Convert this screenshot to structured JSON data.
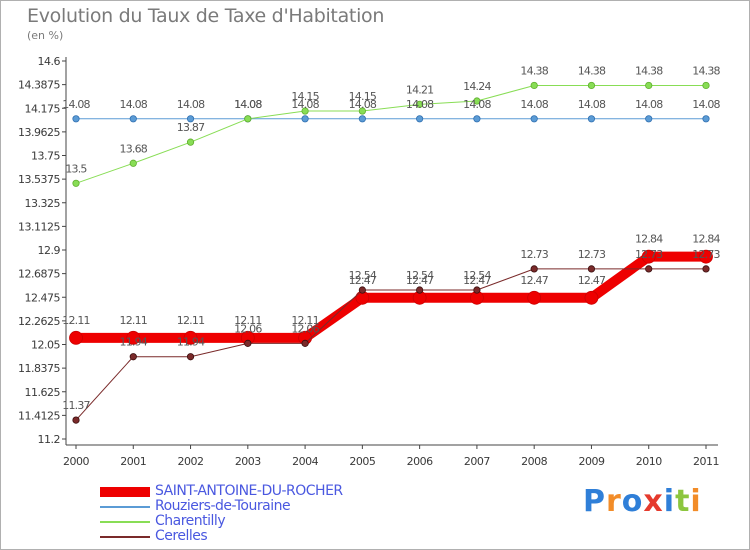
{
  "header": {
    "title": "Evolution du Taux de Taxe d'Habitation",
    "unit": "(en %)"
  },
  "logo": {
    "text": "Proxiti",
    "colors": [
      "#2f7fd8",
      "#f28c28",
      "#2f7fd8",
      "#e53a2d",
      "#2f7fd8",
      "#8cc63e",
      "#f28c28"
    ]
  },
  "chart_data": {
    "type": "line",
    "categories": [
      "2000",
      "2001",
      "2002",
      "2003",
      "2004",
      "2005",
      "2006",
      "2007",
      "2008",
      "2009",
      "2010",
      "2011"
    ],
    "y_ticks": [
      "14.6",
      "14.3875",
      "14.175",
      "13.9625",
      "13.75",
      "13.5375",
      "13.325",
      "13.1125",
      "12.9",
      "12.6875",
      "12.475",
      "12.2625",
      "12.05",
      "11.8375",
      "11.625",
      "11.4125",
      "11.2"
    ],
    "ylim": [
      11.2,
      14.6
    ],
    "grid": false,
    "legend_position": "bottom-left",
    "series": [
      {
        "name": "SAINT-ANTOINE-DU-ROCHER",
        "color": "#ee0000",
        "width": 10,
        "values": [
          12.11,
          12.11,
          12.11,
          12.11,
          12.11,
          12.47,
          12.47,
          12.47,
          12.47,
          12.47,
          12.84,
          12.84
        ],
        "labels": [
          "12.11",
          "12.11",
          "12.11",
          "12.11",
          "12.11",
          "12.47",
          "12.47",
          "12.47",
          "12.47",
          "12.47",
          "12.84",
          "12.84"
        ]
      },
      {
        "name": "Rouziers-de-Touraine",
        "color": "#5b9bd5",
        "width": 1,
        "values": [
          14.08,
          14.08,
          14.08,
          14.08,
          14.08,
          14.08,
          14.08,
          14.08,
          14.08,
          14.08,
          14.08,
          14.08
        ],
        "labels": [
          "14.08",
          "14.08",
          "14.08",
          "14.08",
          "14.08",
          "14.08",
          "14.08",
          "14.08",
          "14.08",
          "14.08",
          "14.08",
          "14.08"
        ]
      },
      {
        "name": "Charentilly",
        "color": "#88dd55",
        "width": 1,
        "values": [
          13.5,
          13.68,
          13.87,
          14.08,
          14.15,
          14.15,
          14.21,
          14.24,
          14.38,
          14.38,
          14.38,
          14.38
        ],
        "labels": [
          "13.5",
          "13.68",
          "13.87",
          "14.08",
          "14.15",
          "14.15",
          "14.21",
          "14.24",
          "14.38",
          "14.38",
          "14.38",
          "14.38"
        ]
      },
      {
        "name": "Cerelles",
        "color": "#7a2a2a",
        "width": 1,
        "values": [
          11.37,
          11.94,
          11.94,
          12.06,
          12.06,
          12.54,
          12.54,
          12.54,
          12.73,
          12.73,
          12.73,
          12.73
        ],
        "labels": [
          "11.37",
          "11.94",
          "11.94",
          "12.06",
          "12.06",
          "12.54",
          "12.54",
          "12.54",
          "12.73",
          "12.73",
          "12.73",
          "12.73"
        ]
      }
    ]
  }
}
